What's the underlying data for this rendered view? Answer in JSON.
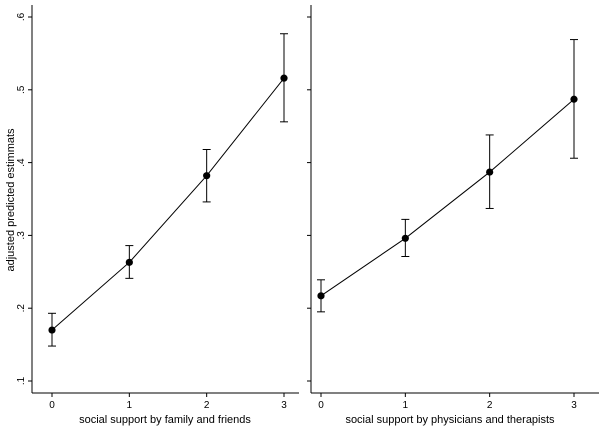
{
  "chart_data": {
    "type": "line",
    "shared_y": {
      "ylabel": "adjusted predicted estimmats",
      "ylim": [
        0.1,
        0.6
      ],
      "yticks": [
        0.1,
        0.2,
        0.3,
        0.4,
        0.5,
        0.6
      ],
      "ytick_labels": [
        ".1",
        ".2",
        ".3",
        ".4",
        ".5",
        ".6"
      ]
    },
    "panels": [
      {
        "xlabel": "social support by family and friends",
        "x": [
          0,
          1,
          2,
          3
        ],
        "xtick_labels": [
          "0",
          "1",
          "2",
          "3"
        ],
        "values": [
          0.17,
          0.263,
          0.382,
          0.516
        ],
        "ci_low": [
          0.148,
          0.241,
          0.346,
          0.456
        ],
        "ci_high": [
          0.193,
          0.286,
          0.418,
          0.577
        ]
      },
      {
        "xlabel": "social support by physicians and therapists",
        "x": [
          0,
          1,
          2,
          3
        ],
        "xtick_labels": [
          "0",
          "1",
          "2",
          "3"
        ],
        "values": [
          0.217,
          0.296,
          0.387,
          0.487
        ],
        "ci_low": [
          0.195,
          0.271,
          0.337,
          0.406
        ],
        "ci_high": [
          0.239,
          0.322,
          0.438,
          0.569
        ]
      }
    ]
  }
}
